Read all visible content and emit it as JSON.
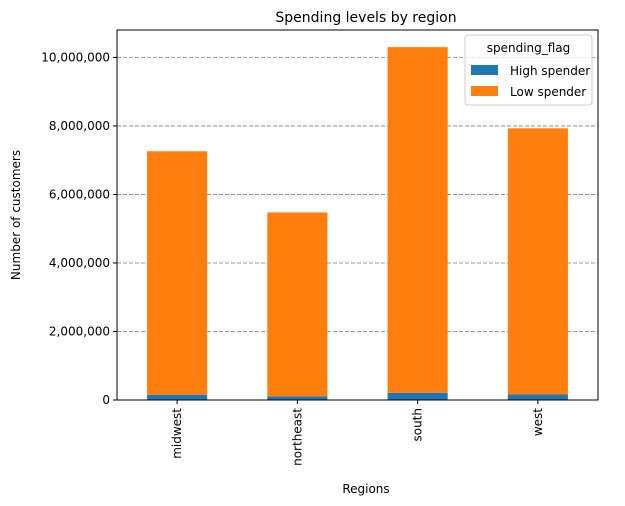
{
  "chart_data": {
    "type": "bar",
    "stacked": true,
    "title": "Spending levels by region",
    "xlabel": "Regions",
    "ylabel": "Number of customers",
    "categories": [
      "midwest",
      "northeast",
      "south",
      "west"
    ],
    "series": [
      {
        "name": "High spender",
        "color": "#1f77b4",
        "values": [
          155000,
          108000,
          210000,
          160000
        ]
      },
      {
        "name": "Low spender",
        "color": "#ff7f0e",
        "values": [
          7105000,
          5367000,
          10090000,
          7770000
        ]
      }
    ],
    "ylim": [
      0,
      10800000
    ],
    "yticks": [
      0,
      2000000,
      4000000,
      6000000,
      8000000,
      10000000
    ],
    "ytick_labels": [
      "0",
      "2,000,000",
      "4,000,000",
      "6,000,000",
      "8,000,000",
      "10,000,000"
    ],
    "grid": "y-dashed",
    "legend": {
      "title": "spending_flag",
      "placement": "top-right"
    }
  }
}
